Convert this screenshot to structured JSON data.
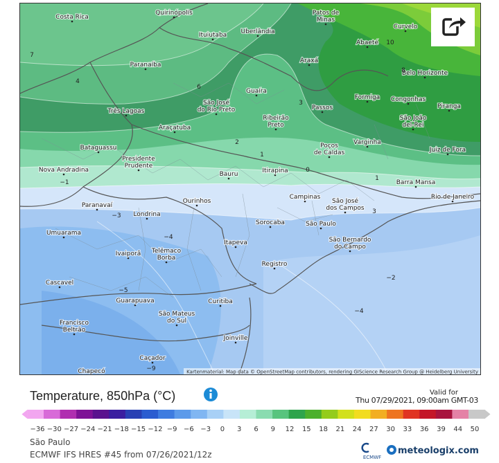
{
  "header": {
    "title": "Temperature, 850hPa (°C)",
    "valid_label": "Valid for",
    "valid_time": "Thu 07/29/2021, 09:00am GMT-03"
  },
  "map": {
    "attribution": "Kartenmaterial: Map data © OpenStreetMap contributors, rendering GIScience Research Group @ Heidelberg University",
    "places": [
      {
        "lines": [
          "Costa Rica"
        ]
      },
      {
        "lines": [
          "Quirinópolis"
        ]
      },
      {
        "lines": [
          "Patos de",
          "Minas"
        ]
      },
      {
        "lines": [
          "Curvelo"
        ]
      },
      {
        "lines": [
          "Ituiutaba"
        ]
      },
      {
        "lines": [
          "Uberlândia"
        ]
      },
      {
        "lines": [
          "Abaeté"
        ]
      },
      {
        "lines": [
          "Paranaíba"
        ]
      },
      {
        "lines": [
          "Araxá"
        ]
      },
      {
        "lines": [
          "Belo Horizonte"
        ]
      },
      {
        "lines": [
          "Guaíra"
        ]
      },
      {
        "lines": [
          "Formiga"
        ]
      },
      {
        "lines": [
          "Congonhas"
        ]
      },
      {
        "lines": [
          "Três Lagoas"
        ]
      },
      {
        "lines": [
          "São José",
          "do Rio Preto"
        ]
      },
      {
        "lines": [
          "Passos"
        ]
      },
      {
        "lines": [
          "Piranga"
        ]
      },
      {
        "lines": [
          "Ribeirão",
          "Preto"
        ]
      },
      {
        "lines": [
          "São João",
          "del-Rei"
        ]
      },
      {
        "lines": [
          "Araçatuba"
        ]
      },
      {
        "lines": [
          "Varginha"
        ]
      },
      {
        "lines": [
          "Bataguassu"
        ]
      },
      {
        "lines": [
          "Poços",
          "de Caldas"
        ]
      },
      {
        "lines": [
          "Juiz de Fora"
        ]
      },
      {
        "lines": [
          "Presidente",
          "Prudente"
        ]
      },
      {
        "lines": [
          "Nova Andradina"
        ]
      },
      {
        "lines": [
          "Itirapina"
        ]
      },
      {
        "lines": [
          "Bauru"
        ]
      },
      {
        "lines": [
          "Barra Mansa"
        ]
      },
      {
        "lines": [
          "Campinas"
        ]
      },
      {
        "lines": [
          "São José",
          "dos Campos"
        ]
      },
      {
        "lines": [
          "Rio de Janeiro"
        ]
      },
      {
        "lines": [
          "Paranavaí"
        ]
      },
      {
        "lines": [
          "Ourinhos"
        ]
      },
      {
        "lines": [
          "Londrina"
        ]
      },
      {
        "lines": [
          "Sorocaba"
        ]
      },
      {
        "lines": [
          "São Paulo"
        ]
      },
      {
        "lines": [
          "Umuarama"
        ]
      },
      {
        "lines": [
          "São Bernardo",
          "do Campo"
        ]
      },
      {
        "lines": [
          "Itapeva"
        ]
      },
      {
        "lines": [
          "Telêmaco",
          "Borba"
        ]
      },
      {
        "lines": [
          "Ivaiporã"
        ]
      },
      {
        "lines": [
          "Registro"
        ]
      },
      {
        "lines": [
          "Cascavel"
        ]
      },
      {
        "lines": [
          "Guarapuava"
        ]
      },
      {
        "lines": [
          "Curitiba"
        ]
      },
      {
        "lines": [
          "São Mateus",
          "do Sul"
        ]
      },
      {
        "lines": [
          "Francisco",
          "Beltrão"
        ]
      },
      {
        "lines": [
          "Joinville"
        ]
      },
      {
        "lines": [
          "Caçador"
        ]
      },
      {
        "lines": [
          "Chapecó"
        ]
      }
    ],
    "contour_labels": [
      "7",
      "4",
      "6",
      "8",
      "10",
      "3",
      "2",
      "1",
      "0",
      "−1",
      "−3",
      "−4",
      "−5",
      "3",
      "1",
      "−2",
      "−4",
      "−9"
    ]
  },
  "legend": {
    "ticks": [
      "−36",
      "−30",
      "−27",
      "−24",
      "−21",
      "−18",
      "−15",
      "−12",
      "−9",
      "−6",
      "−3",
      "0",
      "3",
      "6",
      "9",
      "12",
      "15",
      "18",
      "21",
      "24",
      "27",
      "30",
      "33",
      "36",
      "39",
      "44",
      "50"
    ],
    "colors": [
      "#f2a6f0",
      "#d86ad8",
      "#b02eb0",
      "#7e1296",
      "#5a128e",
      "#3a1ea0",
      "#2840b4",
      "#2a5cd0",
      "#3e7ce0",
      "#5c9aea",
      "#80b6f2",
      "#a8d0f6",
      "#c8e4f8",
      "#b6eed6",
      "#8adcb0",
      "#58c47e",
      "#2ea44c",
      "#4cb02c",
      "#94cc1c",
      "#d2e01c",
      "#f2dc20",
      "#f2ae22",
      "#ee7420",
      "#e03422",
      "#c41628",
      "#a8143e",
      "#e482a6",
      "#c8c8c8"
    ]
  },
  "footer": {
    "location": "São Paulo",
    "model": "ECMWF IFS HRES #45 from 07/26/2021/12z",
    "logo_left": "ECMWF",
    "logo_right": "meteologix.com"
  }
}
